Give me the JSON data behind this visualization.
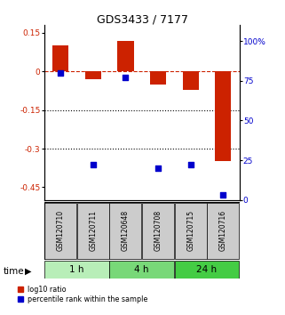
{
  "title": "GDS3433 / 7177",
  "samples": [
    "GSM120710",
    "GSM120711",
    "GSM120648",
    "GSM120708",
    "GSM120715",
    "GSM120716"
  ],
  "log10_ratio": [
    0.1,
    -0.03,
    0.12,
    -0.05,
    -0.07,
    -0.35
  ],
  "percentile_rank": [
    80,
    22,
    77,
    20,
    22,
    3
  ],
  "time_groups": [
    {
      "label": "1 h",
      "samples": [
        0,
        1
      ],
      "color": "#b8eeb8"
    },
    {
      "label": "4 h",
      "samples": [
        2,
        3
      ],
      "color": "#78d878"
    },
    {
      "label": "24 h",
      "samples": [
        4,
        5
      ],
      "color": "#44cc44"
    }
  ],
  "ylim_left": [
    -0.5,
    0.18
  ],
  "ylim_right": [
    0,
    110
  ],
  "yticks_left": [
    0.15,
    0.0,
    -0.15,
    -0.3,
    -0.45
  ],
  "ytick_labels_left": [
    "0.15",
    "0",
    "-0.15",
    "-0.3",
    "-0.45"
  ],
  "yticks_right": [
    100,
    75,
    50,
    25,
    0
  ],
  "ytick_labels_right": [
    "100%",
    "75",
    "50",
    "25",
    "0"
  ],
  "hlines_dotted": [
    -0.15,
    -0.3
  ],
  "hline_dashed": 0.0,
  "bar_color_red": "#cc2200",
  "bar_color_blue": "#0000cc",
  "bar_width": 0.5,
  "square_size": 18,
  "background_color": "#ffffff",
  "label_area_color": "#cccccc",
  "time_label": "time"
}
